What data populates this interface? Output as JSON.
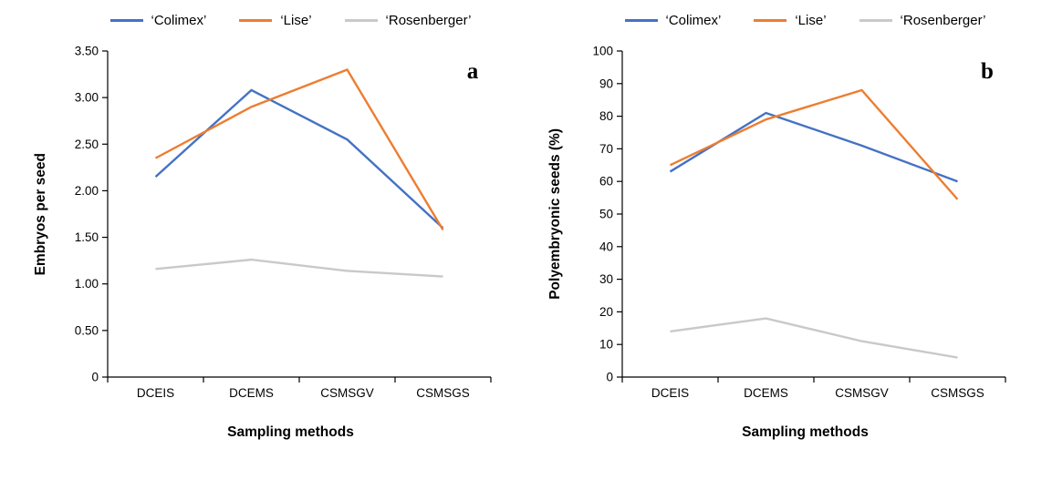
{
  "figure": {
    "background": "#ffffff",
    "axis_color": "#000000"
  },
  "chart_data": [
    {
      "type": "line",
      "panel_label": "a",
      "title": "",
      "xlabel": "Sampling methods",
      "ylabel": "Embryos per seed",
      "categories": [
        "DCEIS",
        "DCEMS",
        "CSMSGV",
        "CSMSGS"
      ],
      "ylim": [
        0,
        3.5
      ],
      "yticks": [
        0,
        0.5,
        1.0,
        1.5,
        2.0,
        2.5,
        3.0,
        3.5
      ],
      "ytick_labels": [
        "0",
        "0.50",
        "1.00",
        "1.50",
        "2.00",
        "2.50",
        "3.00",
        "3.50"
      ],
      "grid": false,
      "legend_position": "top",
      "series": [
        {
          "name": "‘Colimex’",
          "color": "#4472C4",
          "values": [
            2.15,
            3.08,
            2.55,
            1.6
          ]
        },
        {
          "name": "‘Lise’",
          "color": "#ED7D31",
          "values": [
            2.35,
            2.9,
            3.3,
            1.58
          ]
        },
        {
          "name": "‘Rosenberger’",
          "color": "#C9C9C9",
          "values": [
            1.16,
            1.26,
            1.14,
            1.08
          ]
        }
      ]
    },
    {
      "type": "line",
      "panel_label": "b",
      "title": "",
      "xlabel": "Sampling methods",
      "ylabel": "Polyembryonic seeds (%)",
      "categories": [
        "DCEIS",
        "DCEMS",
        "CSMSGV",
        "CSMSGS"
      ],
      "ylim": [
        0,
        100
      ],
      "yticks": [
        0,
        10,
        20,
        30,
        40,
        50,
        60,
        70,
        80,
        90,
        100
      ],
      "ytick_labels": [
        "0",
        "10",
        "20",
        "30",
        "40",
        "50",
        "60",
        "70",
        "80",
        "90",
        "100"
      ],
      "grid": false,
      "legend_position": "top",
      "series": [
        {
          "name": "‘Colimex’",
          "color": "#4472C4",
          "values": [
            63,
            81,
            71,
            60
          ]
        },
        {
          "name": "‘Lise’",
          "color": "#ED7D31",
          "values": [
            65,
            79,
            88,
            54.5
          ]
        },
        {
          "name": "‘Rosenberger’",
          "color": "#C9C9C9",
          "values": [
            14,
            18,
            11,
            6
          ]
        }
      ]
    }
  ]
}
